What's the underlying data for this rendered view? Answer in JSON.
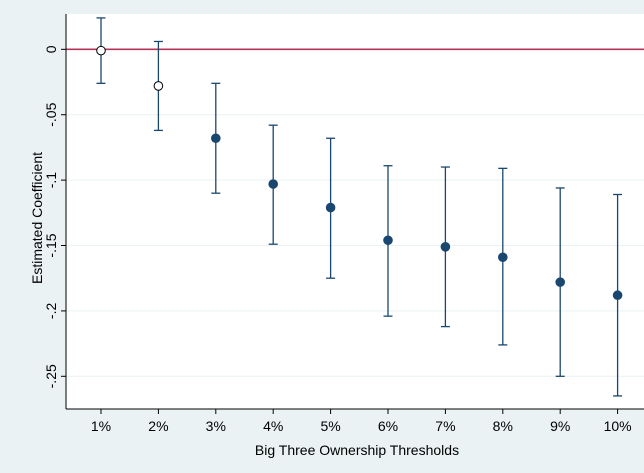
{
  "chart_data": {
    "type": "scatter",
    "subtype": "coefficient-plot-with-confidence-intervals",
    "title": "",
    "xlabel": "Big Three Ownership Thresholds",
    "ylabel": "Estimated Coefficient",
    "categories": [
      "1%",
      "2%",
      "3%",
      "4%",
      "5%",
      "6%",
      "7%",
      "8%",
      "9%",
      "10%"
    ],
    "estimates": [
      -0.001,
      -0.028,
      -0.068,
      -0.103,
      -0.121,
      -0.146,
      -0.151,
      -0.159,
      -0.178,
      -0.188
    ],
    "ci_lower": [
      -0.026,
      -0.062,
      -0.11,
      -0.149,
      -0.175,
      -0.204,
      -0.212,
      -0.226,
      -0.25,
      -0.265
    ],
    "ci_upper": [
      0.024,
      0.006,
      -0.026,
      -0.058,
      -0.068,
      -0.089,
      -0.09,
      -0.091,
      -0.106,
      -0.111
    ],
    "significant": [
      false,
      false,
      true,
      true,
      true,
      true,
      true,
      true,
      true,
      true
    ],
    "ylim": [
      -0.275,
      0.027
    ],
    "yticks": [
      0,
      -0.05,
      -0.1,
      -0.15,
      -0.2,
      -0.25
    ],
    "ytick_labels": [
      "0",
      "-.05",
      "-.1",
      "-.15",
      "-.2",
      "-.25"
    ],
    "reference_line": 0,
    "grid": true,
    "legend": "none",
    "colors": {
      "background": "#eaf2f3",
      "plot_background": "#ffffff",
      "grid": "#eaf2f3",
      "marker": "#1a476f",
      "ci": "#1a476f",
      "reference_line": "#b5345a",
      "hollow_fill": "#ffffff"
    }
  }
}
